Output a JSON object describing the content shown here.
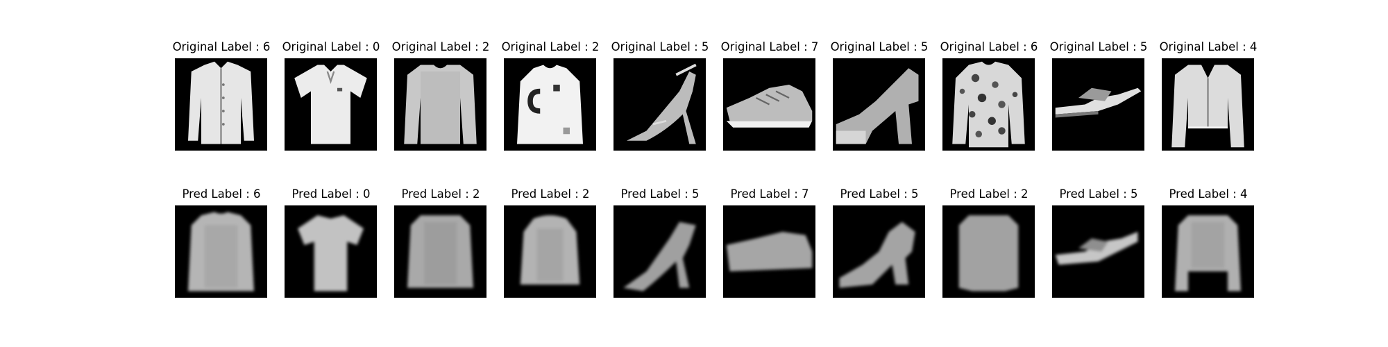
{
  "original_row": [
    {
      "label": "Original Label : 6",
      "icon": "long-sleeve-shirt-icon"
    },
    {
      "label": "Original Label : 0",
      "icon": "polo-tshirt-icon"
    },
    {
      "label": "Original Label : 2",
      "icon": "pullover-icon"
    },
    {
      "label": "Original Label : 2",
      "icon": "letter-sweater-icon"
    },
    {
      "label": "Original Label : 5",
      "icon": "strappy-sandal-icon"
    },
    {
      "label": "Original Label : 7",
      "icon": "sneaker-icon"
    },
    {
      "label": "Original Label : 5",
      "icon": "platform-sandal-icon"
    },
    {
      "label": "Original Label : 6",
      "icon": "floral-shirt-icon"
    },
    {
      "label": "Original Label : 5",
      "icon": "flat-sandal-icon"
    },
    {
      "label": "Original Label : 4",
      "icon": "cardigan-icon"
    }
  ],
  "pred_row": [
    {
      "label": "Pred Label : 6",
      "icon": "blurry-top-icon"
    },
    {
      "label": "Pred Label : 0",
      "icon": "blurry-tshirt-icon"
    },
    {
      "label": "Pred Label : 2",
      "icon": "blurry-pullover-icon"
    },
    {
      "label": "Pred Label : 2",
      "icon": "blurry-pullover-icon"
    },
    {
      "label": "Pred Label : 5",
      "icon": "blurry-sandal-icon"
    },
    {
      "label": "Pred Label : 7",
      "icon": "blurry-sneaker-icon"
    },
    {
      "label": "Pred Label : 5",
      "icon": "blurry-sandal-icon"
    },
    {
      "label": "Pred Label : 2",
      "icon": "blurry-top-icon"
    },
    {
      "label": "Pred Label : 5",
      "icon": "blurry-flat-sandal-icon"
    },
    {
      "label": "Pred Label : 4",
      "icon": "blurry-top-icon"
    }
  ]
}
